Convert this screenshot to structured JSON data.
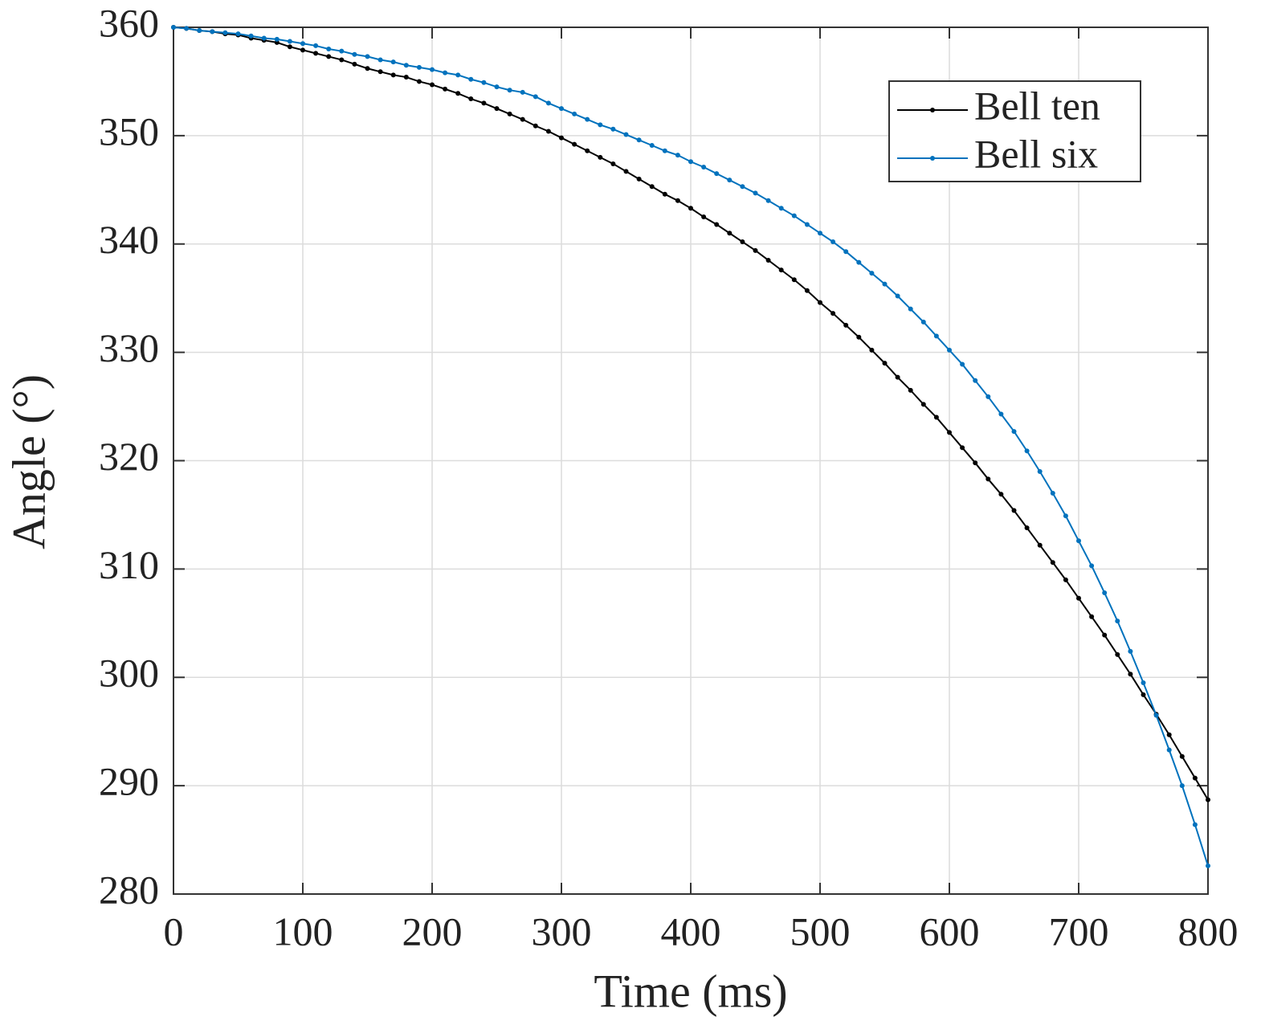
{
  "chart_data": {
    "type": "line",
    "x_label": "Time (ms)",
    "y_label": "Angle (°)",
    "x": [
      0,
      10,
      20,
      30,
      40,
      50,
      60,
      70,
      80,
      90,
      100,
      110,
      120,
      130,
      140,
      150,
      160,
      170,
      180,
      190,
      200,
      210,
      220,
      230,
      240,
      250,
      260,
      270,
      280,
      290,
      300,
      310,
      320,
      330,
      340,
      350,
      360,
      370,
      380,
      390,
      400,
      410,
      420,
      430,
      440,
      450,
      460,
      470,
      480,
      490,
      500,
      510,
      520,
      530,
      540,
      550,
      560,
      570,
      580,
      590,
      600,
      610,
      620,
      630,
      640,
      650,
      660,
      670,
      680,
      690,
      700,
      710,
      720,
      730,
      740,
      750,
      760,
      770,
      780,
      790,
      800
    ],
    "series": [
      {
        "name": "Bell ten",
        "color": "#000000",
        "values": [
          360,
          359.9,
          359.7,
          359.6,
          359.4,
          359.3,
          359.0,
          358.8,
          358.6,
          358.2,
          357.9,
          357.6,
          357.3,
          357.0,
          356.6,
          356.2,
          355.9,
          355.6,
          355.4,
          355.0,
          354.7,
          354.3,
          353.9,
          353.4,
          353.0,
          352.5,
          352.0,
          351.5,
          350.9,
          350.4,
          349.8,
          349.2,
          348.6,
          348.0,
          347.4,
          346.7,
          346.0,
          345.3,
          344.6,
          344.0,
          343.3,
          342.5,
          341.8,
          341.0,
          340.2,
          339.4,
          338.5,
          337.6,
          336.7,
          335.7,
          334.6,
          333.6,
          332.5,
          331.4,
          330.2,
          329.0,
          327.7,
          326.5,
          325.2,
          324.0,
          322.6,
          321.2,
          319.8,
          318.3,
          316.9,
          315.4,
          313.8,
          312.2,
          310.6,
          309.0,
          307.3,
          305.6,
          303.9,
          302.1,
          300.3,
          298.4,
          296.6,
          294.7,
          292.7,
          290.7,
          288.7
        ]
      },
      {
        "name": "Bell six",
        "color": "#0072bd",
        "values": [
          360,
          359.9,
          359.7,
          359.6,
          359.5,
          359.4,
          359.2,
          359.0,
          358.9,
          358.7,
          358.5,
          358.3,
          358.0,
          357.8,
          357.5,
          357.3,
          357.0,
          356.8,
          356.5,
          356.3,
          356.1,
          355.8,
          355.6,
          355.2,
          354.9,
          354.5,
          354.2,
          354.0,
          353.6,
          353.0,
          352.5,
          352.0,
          351.5,
          351.0,
          350.6,
          350.1,
          349.6,
          349.1,
          348.6,
          348.2,
          347.6,
          347.1,
          346.5,
          345.9,
          345.3,
          344.7,
          344.0,
          343.3,
          342.6,
          341.8,
          341.0,
          340.2,
          339.3,
          338.3,
          337.3,
          336.3,
          335.2,
          334.0,
          332.8,
          331.5,
          330.2,
          328.9,
          327.4,
          325.9,
          324.3,
          322.7,
          320.9,
          319.0,
          317.0,
          314.9,
          312.6,
          310.3,
          307.8,
          305.2,
          302.4,
          299.5,
          296.5,
          293.3,
          290.0,
          286.4,
          282.6
        ]
      }
    ],
    "xlim": [
      0,
      800
    ],
    "xticks": [
      0,
      100,
      200,
      300,
      400,
      500,
      600,
      700,
      800
    ],
    "ylim": [
      280,
      360
    ],
    "yticks": [
      280,
      290,
      300,
      310,
      320,
      330,
      340,
      350,
      360
    ],
    "grid": true,
    "legend": "upper right"
  }
}
